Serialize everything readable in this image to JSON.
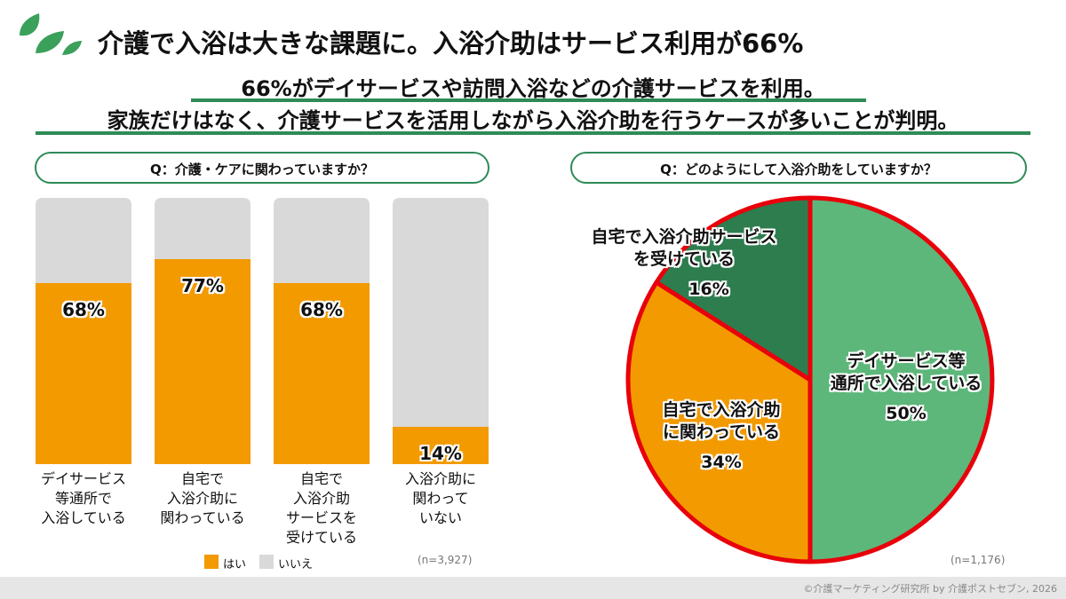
{
  "header": {
    "title": "介護で入浴は大きな課題に。入浴介助はサービス利用が66%",
    "subtitle_lines": [
      "66%がデイサービスや訪問入浴などの介護サービスを利用。",
      "家族だけはなく、介護サービスを活用しながら入浴介助を行うケースが多いことが判明。"
    ]
  },
  "chart_data": [
    {
      "type": "bar",
      "stacked": true,
      "title": "Q：介護・ケアに関わっていますか？",
      "categories": [
        "デイサービス\n等通所で\n入浴している",
        "自宅で\n入浴介助に\n関わっている",
        "自宅で\n入浴介助\nサービスを\n受けている",
        "入浴介助に\n関わって\nいない"
      ],
      "series": [
        {
          "name": "はい",
          "color": "#f29a00",
          "values": [
            68,
            77,
            68,
            14
          ],
          "value_labels": [
            "68%",
            "77%",
            "68%",
            "14%"
          ]
        },
        {
          "name": "いいえ",
          "color": "#d9d9d9",
          "values": [
            32,
            23,
            32,
            86
          ]
        }
      ],
      "ylim": [
        0,
        100
      ],
      "note": "(n=3,927)"
    },
    {
      "type": "pie",
      "title": "Q：どのようにして入浴介助をしていますか？",
      "categories": [
        "デイサービス等\n通所で入浴している",
        "自宅で入浴介助\nに関わっている",
        "自宅で入浴介助サービス\nを受けている"
      ],
      "values": [
        50,
        34,
        16
      ],
      "value_labels": [
        "50%",
        "34%",
        "16%"
      ],
      "colors": [
        "#5db77a",
        "#f29a00",
        "#2e7d4f"
      ],
      "border_color": "#e8000b",
      "note": "(n=1,176)"
    }
  ],
  "footer": "©介護マーケティング研究所 by 介護ポストセブン, 2026"
}
